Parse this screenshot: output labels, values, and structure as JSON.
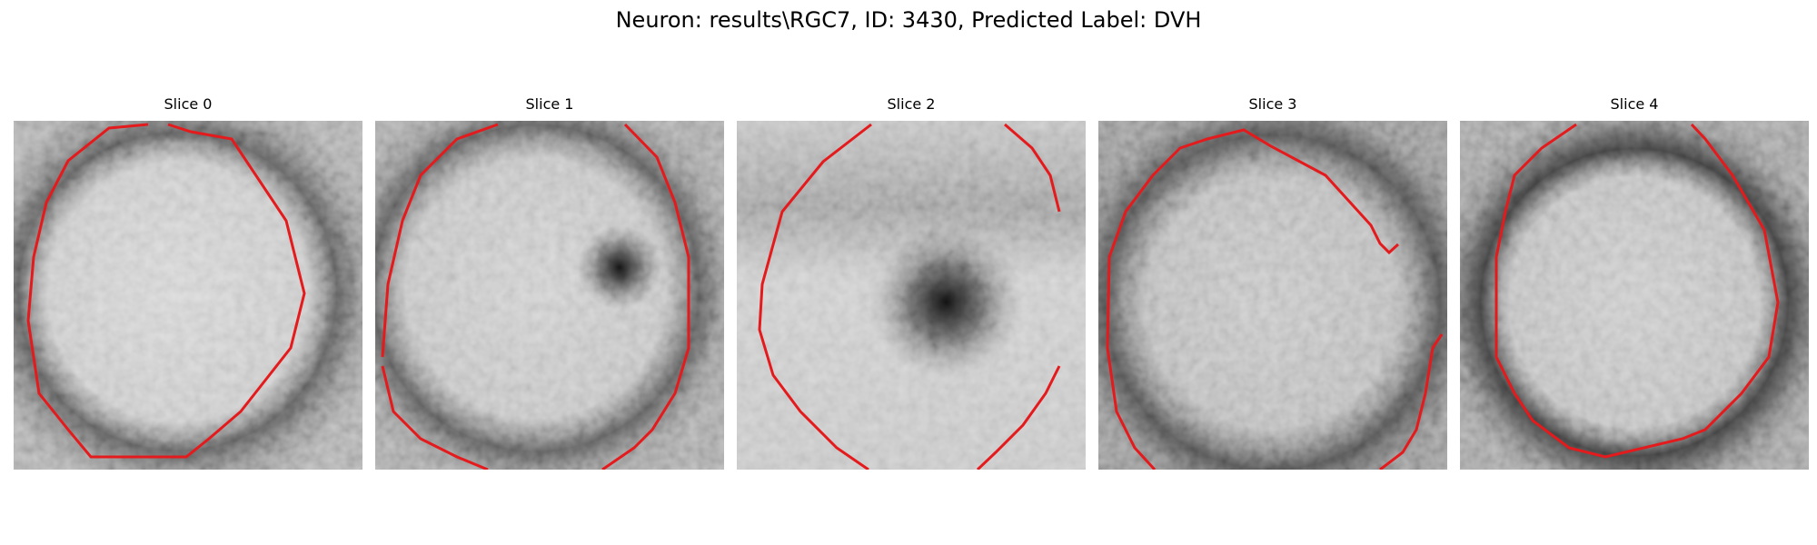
{
  "figure": {
    "title": "Neuron: results\\RGC7, ID: 3430, Predicted Label: DVH",
    "contour_color": "#e41a1c"
  },
  "slices": [
    {
      "label": "Slice 0"
    },
    {
      "label": "Slice 1"
    },
    {
      "label": "Slice 2"
    },
    {
      "label": "Slice 3"
    },
    {
      "label": "Slice 4"
    }
  ]
}
